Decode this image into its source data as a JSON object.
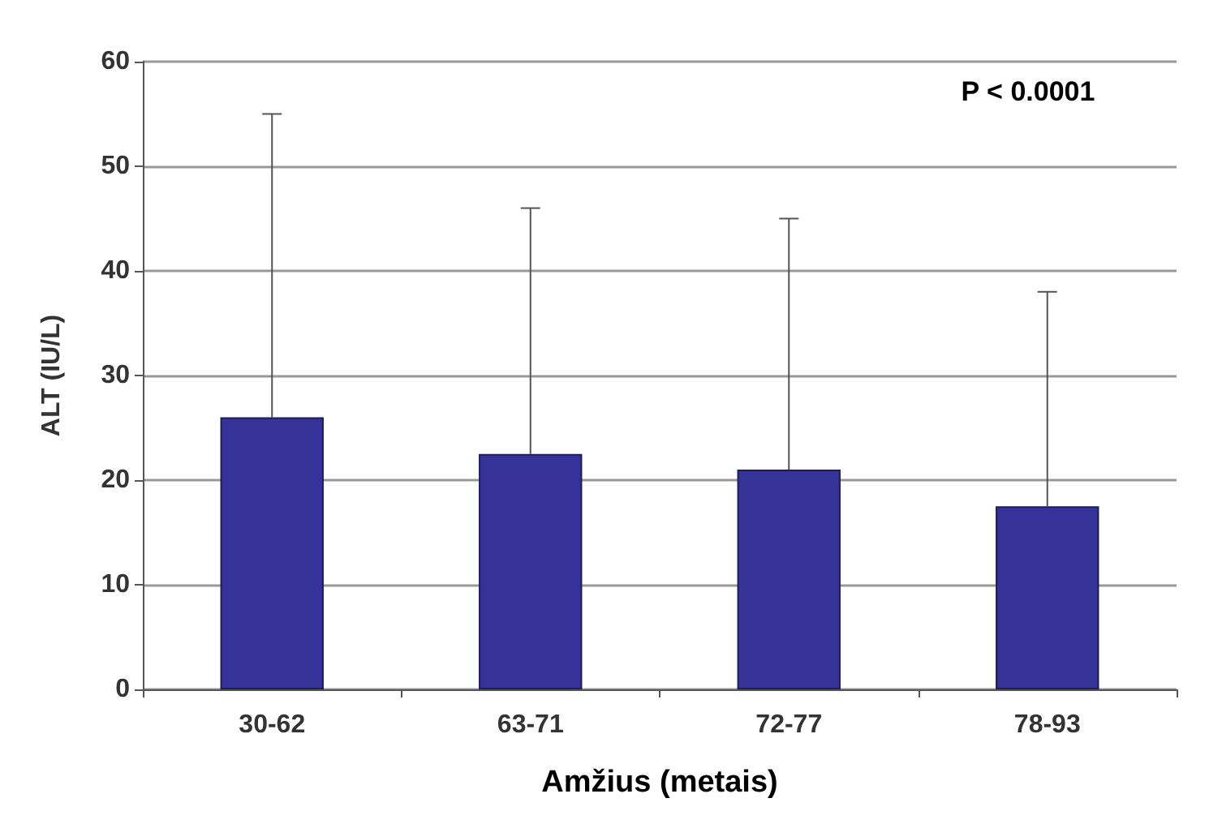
{
  "chart_data": {
    "type": "bar",
    "categories": [
      "30-62",
      "63-71",
      "72-77",
      "78-93"
    ],
    "xlabel": "Amžius (metais)",
    "ylabel": "ALT (IU/L)",
    "values": [
      26,
      22.5,
      21,
      17.5
    ],
    "errors": [
      [
        26,
        55
      ],
      [
        22.5,
        46
      ],
      [
        21,
        45
      ],
      [
        17.5,
        38
      ]
    ],
    "color": "#35339a",
    "ylim": [
      0,
      60
    ],
    "yticks": [
      0,
      10,
      20,
      30,
      40,
      50,
      60
    ],
    "grid": "y",
    "annotations": [
      "P < 0.0001"
    ]
  }
}
